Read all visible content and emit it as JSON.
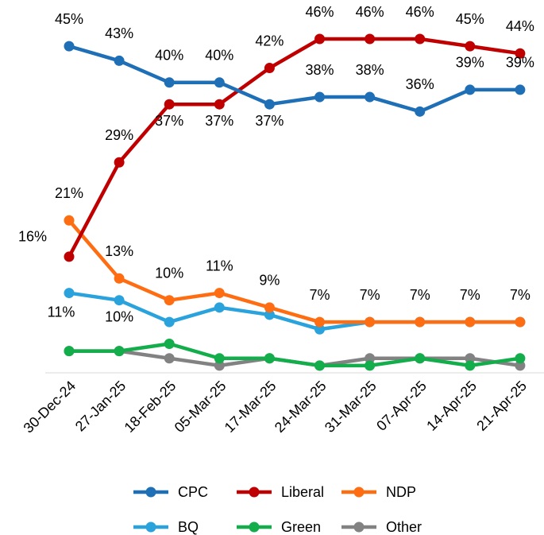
{
  "chart_data": {
    "type": "line",
    "categories": [
      "30-Dec-24",
      "27-Jan-25",
      "18-Feb-25",
      "05-Mar-25",
      "17-Mar-25",
      "24-Mar-25",
      "31-Mar-25",
      "07-Apr-25",
      "14-Apr-25",
      "21-Apr-25"
    ],
    "ylim": [
      0,
      50
    ],
    "series": [
      {
        "name": "CPC",
        "color": "#1f6fb7",
        "values": [
          45,
          43,
          40,
          40,
          37,
          38,
          38,
          36,
          39,
          39
        ],
        "value_labels": [
          "45%",
          "43%",
          "40%",
          "40%",
          "37%",
          "38%",
          "38%",
          "36%",
          "39%",
          "39%"
        ]
      },
      {
        "name": "Liberal",
        "color": "#c00000",
        "values": [
          16,
          29,
          37,
          37,
          42,
          46,
          46,
          46,
          45,
          44
        ],
        "value_labels": [
          "16%",
          "29%",
          "37%",
          "37%",
          "42%",
          "46%",
          "46%",
          "46%",
          "45%",
          "44%"
        ]
      },
      {
        "name": "NDP",
        "color": "#ff6d12",
        "values": [
          21,
          13,
          10,
          11,
          9,
          7,
          7,
          7,
          7,
          7
        ],
        "value_labels": [
          "21%",
          "13%",
          "10%",
          "11%",
          "9%",
          "7%",
          "7%",
          "7%",
          "7%",
          "7%"
        ]
      },
      {
        "name": "BQ",
        "color": "#2aa3dd",
        "values": [
          11,
          10,
          7,
          9,
          8,
          6,
          7,
          7,
          7,
          7
        ],
        "value_labels": [
          "11%",
          "10%",
          null,
          null,
          null,
          null,
          null,
          null,
          null,
          null
        ]
      },
      {
        "name": "Green",
        "color": "#13ad4b",
        "values": [
          3,
          3,
          4,
          2,
          2,
          1,
          1,
          2,
          1,
          2
        ]
      },
      {
        "name": "Other",
        "color": "#828282",
        "values": [
          3,
          3,
          2,
          1,
          2,
          1,
          2,
          2,
          2,
          1
        ]
      }
    ]
  }
}
